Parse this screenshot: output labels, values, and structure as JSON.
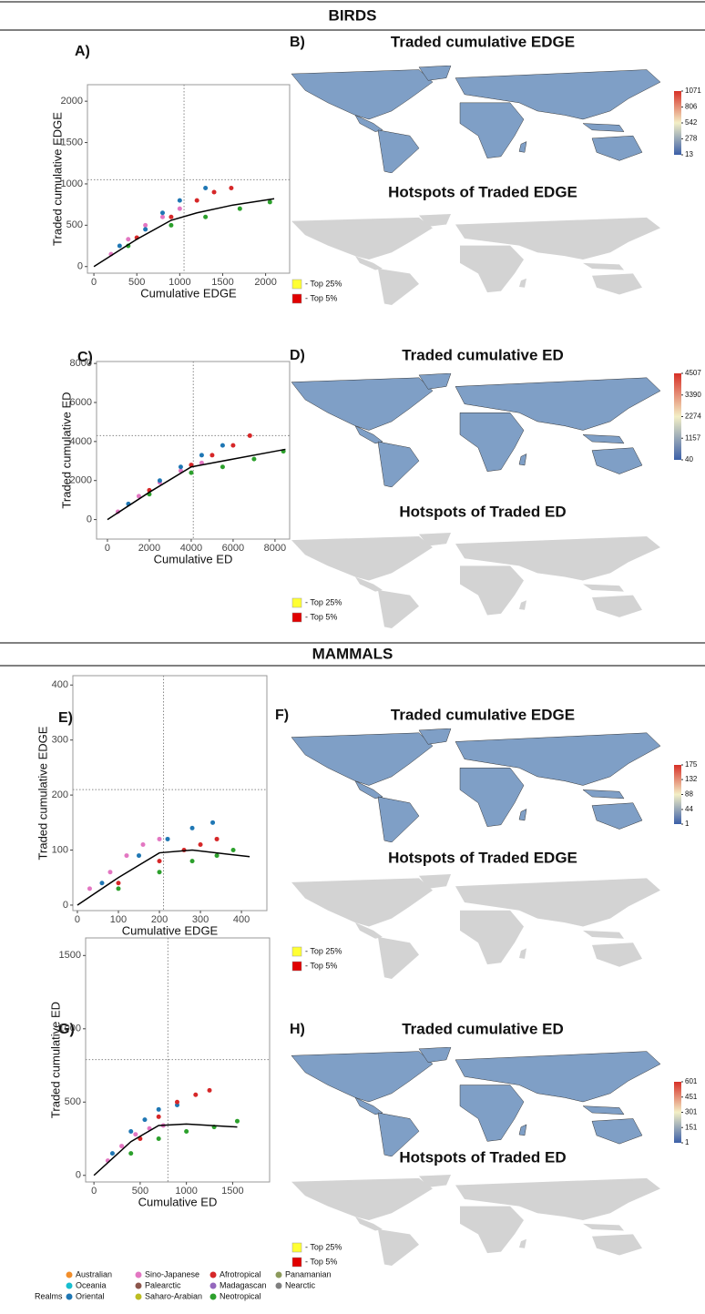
{
  "sections": [
    "BIRDS",
    "MAMMALS"
  ],
  "chart_data": [
    {
      "type": "scatter",
      "panel": "A)",
      "xlabel": "Cumulative EDGE",
      "ylabel": "Traded cumulative EDGE",
      "xlim": [
        -75,
        2280
      ],
      "ylim": [
        -80,
        2200
      ],
      "xticks": [
        0,
        500,
        1000,
        1500,
        2000
      ],
      "yticks": [
        0,
        500,
        1000,
        1500,
        2000
      ],
      "ref_x": 1050,
      "ref_y": 1050,
      "trend": {
        "x": [
          0,
          500,
          900,
          1200,
          1600,
          2100
        ],
        "values": [
          0,
          330,
          560,
          650,
          740,
          820
        ]
      },
      "series": [
        {
          "name": "Sino-Japanese",
          "color": "#e377c2",
          "x": [
            200,
            400,
            600,
            800,
            1000
          ],
          "values": [
            150,
            330,
            500,
            600,
            700
          ]
        },
        {
          "name": "Neotropical",
          "color": "#2ca02c",
          "x": [
            400,
            900,
            1300,
            1700,
            2050
          ],
          "values": [
            250,
            500,
            600,
            700,
            780
          ]
        },
        {
          "name": "Oriental",
          "color": "#1f77b4",
          "x": [
            300,
            600,
            800,
            1000,
            1300
          ],
          "values": [
            250,
            450,
            650,
            800,
            950
          ]
        },
        {
          "name": "Afrotropical",
          "color": "#d62728",
          "x": [
            500,
            900,
            1200,
            1400,
            1600
          ],
          "values": [
            350,
            600,
            800,
            900,
            950
          ]
        }
      ]
    },
    {
      "type": "scatter",
      "panel": "C)",
      "xlabel": "Cumulative ED",
      "ylabel": "Traded cumulative ED",
      "xlim": [
        -520,
        8700
      ],
      "ylim": [
        -1000,
        8100
      ],
      "xticks": [
        0,
        2000,
        4000,
        6000,
        8000
      ],
      "yticks": [
        0,
        2000,
        4000,
        6000,
        8000
      ],
      "ref_x": 4100,
      "ref_y": 4300,
      "trend": {
        "x": [
          0,
          2000,
          4000,
          6000,
          8500
        ],
        "values": [
          0,
          1400,
          2700,
          3100,
          3600
        ]
      },
      "series": [
        {
          "name": "Sino-Japanese",
          "color": "#e377c2",
          "x": [
            500,
            1500,
            2500,
            3500,
            4500
          ],
          "values": [
            400,
            1200,
            1900,
            2500,
            2900
          ]
        },
        {
          "name": "Neotropical",
          "color": "#2ca02c",
          "x": [
            2000,
            4000,
            5500,
            7000,
            8400
          ],
          "values": [
            1300,
            2400,
            2700,
            3100,
            3500
          ]
        },
        {
          "name": "Oriental",
          "color": "#1f77b4",
          "x": [
            1000,
            2500,
            3500,
            4500,
            5500
          ],
          "values": [
            800,
            2000,
            2700,
            3300,
            3800
          ]
        },
        {
          "name": "Afrotropical",
          "color": "#d62728",
          "x": [
            2000,
            4000,
            5000,
            6000,
            6800
          ],
          "values": [
            1500,
            2800,
            3300,
            3800,
            4300
          ]
        }
      ]
    },
    {
      "type": "scatter",
      "panel": "E)",
      "xlabel": "Cumulative EDGE",
      "ylabel": "Traded cumulative EDGE",
      "xlim": [
        -11,
        462
      ],
      "ylim": [
        -10,
        417
      ],
      "xticks": [
        0,
        100,
        200,
        300,
        400
      ],
      "yticks": [
        0,
        100,
        200,
        300,
        400
      ],
      "ref_x": 210,
      "ref_y": 210,
      "trend": {
        "x": [
          0,
          100,
          200,
          280,
          420
        ],
        "values": [
          0,
          50,
          95,
          100,
          88
        ]
      },
      "series": [
        {
          "name": "Sino-Japanese",
          "color": "#e377c2",
          "x": [
            30,
            80,
            120,
            160,
            200
          ],
          "values": [
            30,
            60,
            90,
            110,
            120
          ]
        },
        {
          "name": "Neotropical",
          "color": "#2ca02c",
          "x": [
            100,
            200,
            280,
            340,
            380
          ],
          "values": [
            30,
            60,
            80,
            90,
            100
          ]
        },
        {
          "name": "Oriental",
          "color": "#1f77b4",
          "x": [
            60,
            150,
            220,
            280,
            330
          ],
          "values": [
            40,
            90,
            120,
            140,
            150
          ]
        },
        {
          "name": "Afrotropical",
          "color": "#d62728",
          "x": [
            100,
            200,
            260,
            300,
            340
          ],
          "values": [
            40,
            80,
            100,
            110,
            120
          ]
        }
      ]
    },
    {
      "type": "scatter",
      "panel": "G)",
      "xlabel": "Cumulative ED",
      "ylabel": "Traded cumulative ED",
      "xlim": [
        -90,
        1900
      ],
      "ylim": [
        -45,
        1620
      ],
      "xticks": [
        0,
        500,
        1000,
        1500
      ],
      "yticks": [
        0,
        500,
        1000,
        1500
      ],
      "ref_x": 800,
      "ref_y": 790,
      "trend": {
        "x": [
          0,
          400,
          700,
          1000,
          1550
        ],
        "values": [
          0,
          230,
          340,
          350,
          330
        ]
      },
      "series": [
        {
          "name": "Sino-Japanese",
          "color": "#e377c2",
          "x": [
            150,
            300,
            450,
            600,
            750
          ],
          "values": [
            100,
            200,
            280,
            320,
            340
          ]
        },
        {
          "name": "Neotropical",
          "color": "#2ca02c",
          "x": [
            400,
            700,
            1000,
            1300,
            1550
          ],
          "values": [
            150,
            250,
            300,
            330,
            370
          ]
        },
        {
          "name": "Oriental",
          "color": "#1f77b4",
          "x": [
            200,
            400,
            550,
            700,
            900
          ],
          "values": [
            150,
            300,
            380,
            450,
            480
          ]
        },
        {
          "name": "Afrotropical",
          "color": "#d62728",
          "x": [
            500,
            700,
            900,
            1100,
            1250
          ],
          "values": [
            250,
            400,
            500,
            550,
            580
          ]
        }
      ]
    }
  ],
  "maps": [
    {
      "panel": "B)",
      "title": "Traded cumulative EDGE",
      "colorbar_ticks": [
        1071,
        806,
        542,
        278,
        13
      ]
    },
    {
      "title": "Hotspots of Traded EDGE",
      "legend": [
        "- Top 25%",
        "- Top 5%"
      ]
    },
    {
      "panel": "D)",
      "title": "Traded cumulative ED",
      "colorbar_ticks": [
        4507,
        3390,
        2274,
        1157,
        40
      ]
    },
    {
      "title": "Hotspots of Traded ED",
      "legend": [
        "- Top 25%",
        "- Top 5%"
      ]
    },
    {
      "panel": "F)",
      "title": "Traded cumulative EDGE",
      "colorbar_ticks": [
        175,
        132,
        88,
        44,
        1
      ]
    },
    {
      "title": "Hotspots of Traded EDGE",
      "legend": [
        "- Top 25%",
        "- Top 5%"
      ]
    },
    {
      "panel": "H)",
      "title": "Traded cumulative ED",
      "colorbar_ticks": [
        601,
        451,
        301,
        151,
        1
      ]
    },
    {
      "title": "Hotspots of Traded ED",
      "legend": [
        "- Top 25%",
        "- Top 5%"
      ]
    }
  ],
  "legend": {
    "title": "Realms",
    "items": [
      {
        "name": "Australian",
        "color": "#f28e2b"
      },
      {
        "name": "Oceania",
        "color": "#17becf"
      },
      {
        "name": "Oriental",
        "color": "#1f77b4"
      },
      {
        "name": "Sino-Japanese",
        "color": "#e377c2"
      },
      {
        "name": "Palearctic",
        "color": "#8c564b"
      },
      {
        "name": "Saharo-Arabian",
        "color": "#bcbd22"
      },
      {
        "name": "Afrotropical",
        "color": "#d62728"
      },
      {
        "name": "Madagascan",
        "color": "#9467bd"
      },
      {
        "name": "Neotropical",
        "color": "#2ca02c"
      },
      {
        "name": "Panamanian",
        "color": "#8c9a5b"
      },
      {
        "name": "Nearctic",
        "color": "#7f7f7f"
      }
    ]
  }
}
